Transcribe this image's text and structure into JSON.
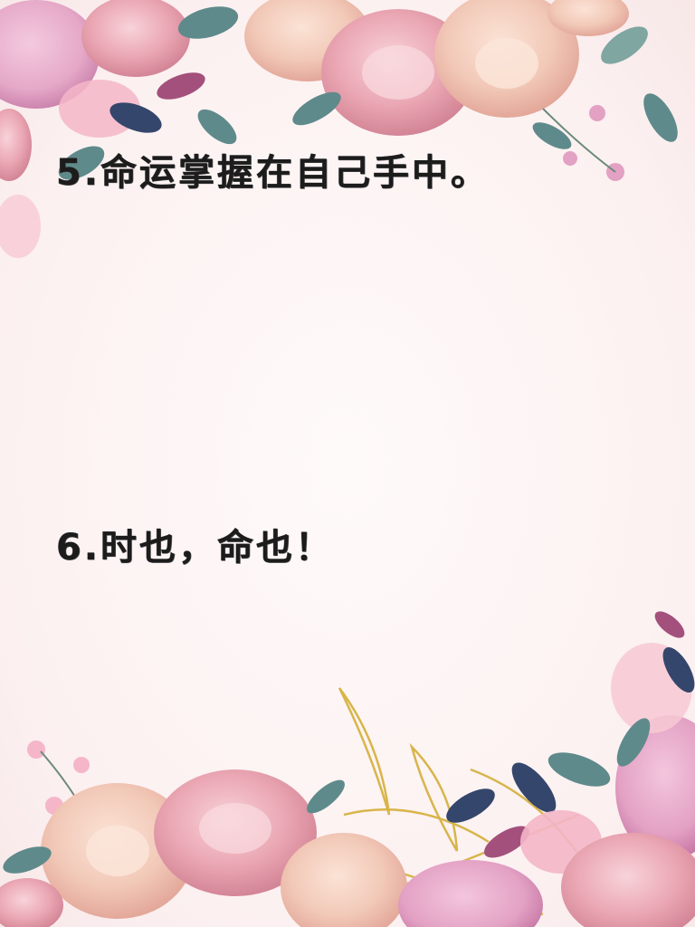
{
  "lines": [
    {
      "text": "5.命运掌握在自己手中。"
    },
    {
      "text": "6.时也，命也！"
    }
  ],
  "colors": {
    "background": "#fdf3f3",
    "text": "#1c1c1c",
    "rose_peach": "#f2c9b8",
    "rose_pink": "#eaa6b3",
    "leaf_teal": "#5f8a8b",
    "leaf_navy": "#34466b",
    "gold": "#d8b54a",
    "blossom": "#f4b6c8"
  },
  "decor": {
    "top_border": "floral-border-top",
    "bottom_border": "floral-border-bottom"
  }
}
